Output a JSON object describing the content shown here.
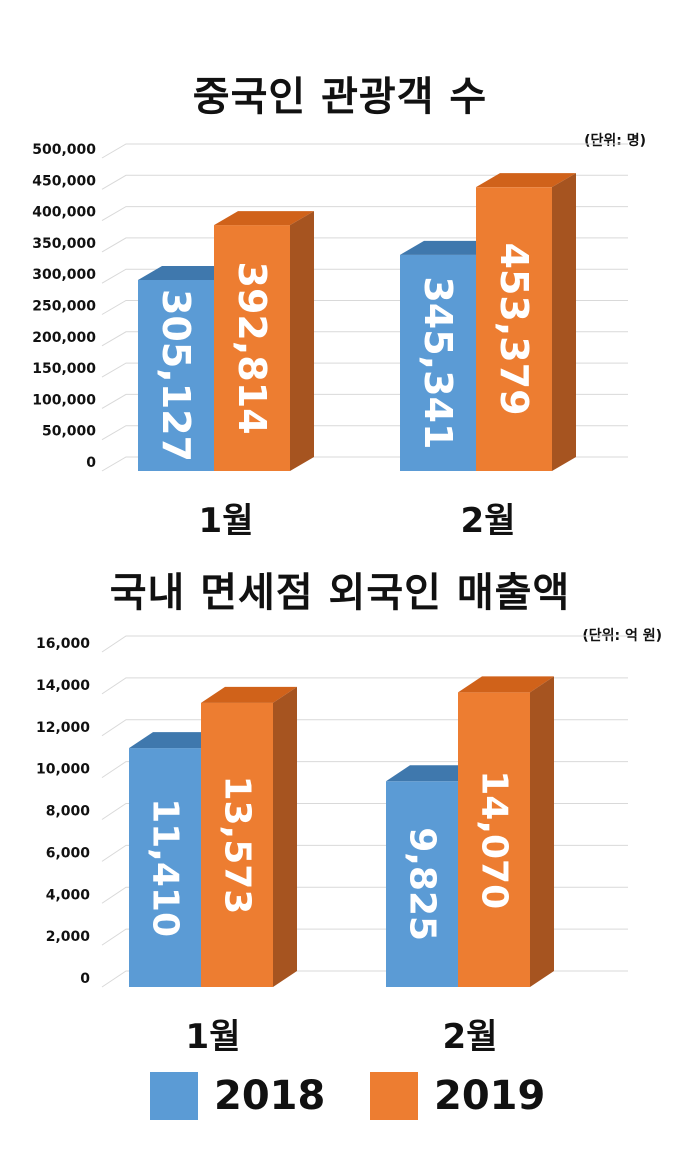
{
  "colors": {
    "s2018": {
      "front": "#5b9bd5",
      "top": "#3f78ad",
      "side": "#2f5f8c"
    },
    "s2019": {
      "front": "#ed7d31",
      "top": "#d0621a",
      "side": "#a65420"
    },
    "grid": "#d9d9d9"
  },
  "legend": [
    {
      "label": "2018",
      "color": "#5b9bd5"
    },
    {
      "label": "2019",
      "color": "#ed7d31"
    }
  ],
  "chart_data": [
    {
      "type": "bar",
      "title": "중국인 관광객 수",
      "unit": "(단위: 명)",
      "categories": [
        "1월",
        "2월"
      ],
      "series": [
        {
          "name": "2018",
          "values": [
            305127,
            345341
          ],
          "labels": [
            "305,127",
            "345,341"
          ]
        },
        {
          "name": "2019",
          "values": [
            392814,
            453379
          ],
          "labels": [
            "392,814",
            "453,379"
          ]
        }
      ],
      "ylim": [
        0,
        500000
      ],
      "ticks": [
        "0",
        "50,000",
        "100,000",
        "150,000",
        "200,000",
        "250,000",
        "300,000",
        "350,000",
        "400,000",
        "450,000",
        "500,000"
      ],
      "grid": true,
      "legend": "bottom"
    },
    {
      "type": "bar",
      "title": "국내 면세점 외국인 매출액",
      "unit": "(단위: 억 원)",
      "categories": [
        "1월",
        "2월"
      ],
      "series": [
        {
          "name": "2018",
          "values": [
            11410,
            9825
          ],
          "labels": [
            "11,410",
            "9,825"
          ]
        },
        {
          "name": "2019",
          "values": [
            13573,
            14070
          ],
          "labels": [
            "13,573",
            "14,070"
          ]
        }
      ],
      "ylim": [
        0,
        16000
      ],
      "ticks": [
        "0",
        "2,000",
        "4,000",
        "6,000",
        "8,000",
        "10,000",
        "12,000",
        "14,000",
        "16,000"
      ],
      "grid": true,
      "legend": "bottom"
    }
  ]
}
